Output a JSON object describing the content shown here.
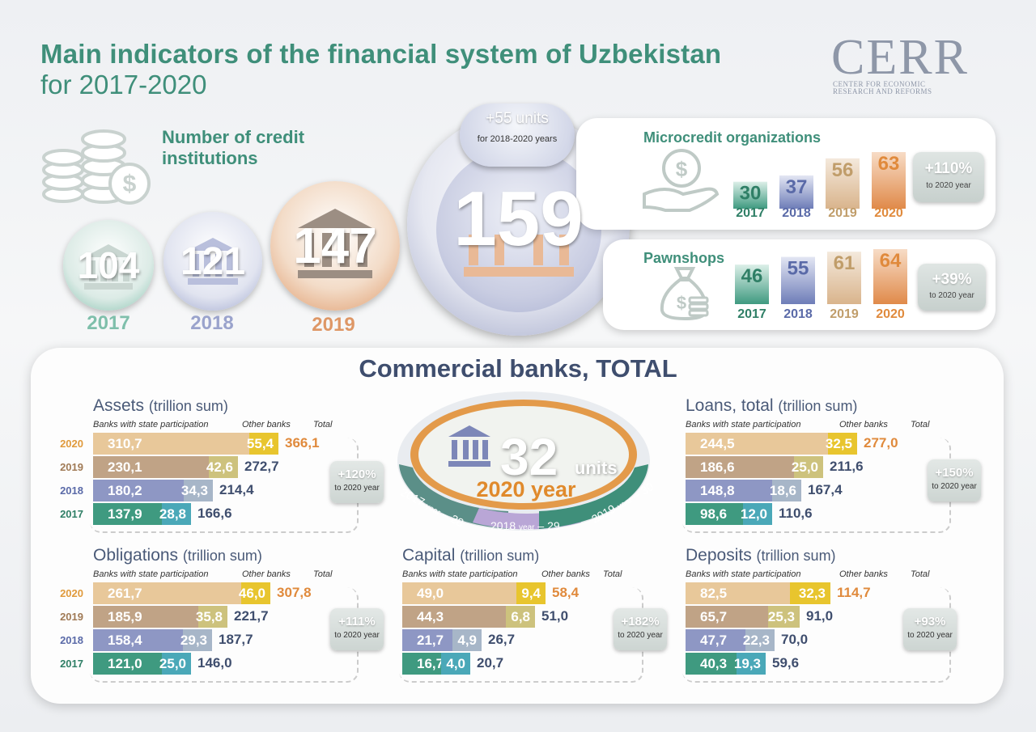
{
  "header": {
    "title": "Main indicators of the financial system of Uzbekistan",
    "subtitle": "for 2017-2020"
  },
  "logo": {
    "word": "CERR",
    "line1": "CENTER FOR ECONOMIC",
    "line2": "RESEARCH AND REFORMS"
  },
  "credit": {
    "heading": "Number of credit institutions",
    "circles": [
      {
        "value": "104",
        "year": "2017",
        "color": "#4a9f85"
      },
      {
        "value": "121",
        "year": "2018",
        "color": "#7d88b6"
      },
      {
        "value": "147",
        "year": "2019",
        "color": "#d98a57"
      }
    ],
    "total": "159",
    "change": "+55 units",
    "change_note": "for 2018-2020 years"
  },
  "microcredit": {
    "title": "Microcredit organizations",
    "years": [
      "2017",
      "2018",
      "2019",
      "2020"
    ],
    "values": [
      30,
      37,
      56,
      63
    ],
    "badge_big": "+110%",
    "badge_small": "to 2020 year"
  },
  "pawnshops": {
    "title": "Pawnshops",
    "years": [
      "2017",
      "2018",
      "2019",
      "2020"
    ],
    "values": [
      46,
      55,
      61,
      64
    ],
    "badge_big": "+39%",
    "badge_small": "to 2020 year"
  },
  "banks": {
    "title": "Commercial banks, TOTAL",
    "count": "32",
    "units": "units",
    "count_year": "2020 year",
    "prev": [
      {
        "label": "2017",
        "word": "year",
        "value": "28"
      },
      {
        "label": "2018",
        "word": "year",
        "value": "29"
      },
      {
        "label": "2019",
        "word": "year",
        "value": "30"
      }
    ]
  },
  "col_heads": {
    "state": "Banks with state participation",
    "other": "Other banks",
    "total": "Total"
  },
  "year_colors": {
    "2020": "#e09a3c",
    "2019": "#a07a55",
    "2018": "#5a6aa8",
    "2017": "#2f7f66"
  },
  "state_colors": {
    "2020": "#e8c89a",
    "2019": "#c0a386",
    "2018": "#8e97c4",
    "2017": "#3f9a80"
  },
  "other_colors": {
    "2020": "#e8c52e",
    "2019": "#cdc27d",
    "2018": "#a7b6c8",
    "2017": "#4aa8b8"
  },
  "chart_data": [
    {
      "type": "bar",
      "title": "Assets",
      "unit": "(trillion sum)",
      "categories": [
        "2020",
        "2019",
        "2018",
        "2017"
      ],
      "series": [
        {
          "name": "Banks with state participation",
          "values": [
            310.7,
            230.1,
            180.2,
            137.9
          ]
        },
        {
          "name": "Other banks",
          "values": [
            55.4,
            42.6,
            34.3,
            28.8
          ]
        }
      ],
      "labels_state": [
        "310,7",
        "230,1",
        "180,2",
        "137,9"
      ],
      "labels_other": [
        "55,4",
        "42,6",
        "34,3",
        "28,8"
      ],
      "totals": [
        "366,1",
        "272,7",
        "214,4",
        "166,6"
      ],
      "badge_big": "+120%",
      "badge_small": "to 2020 year"
    },
    {
      "type": "bar",
      "title": "Loans, total",
      "unit": "(trillion sum)",
      "categories": [
        "2020",
        "2019",
        "2018",
        "2017"
      ],
      "series": [
        {
          "name": "Banks with state participation",
          "values": [
            244.5,
            186.6,
            148.8,
            98.6
          ]
        },
        {
          "name": "Other banks",
          "values": [
            32.5,
            25.0,
            18.6,
            12.0
          ]
        }
      ],
      "labels_state": [
        "244,5",
        "186,6",
        "148,8",
        "98,6"
      ],
      "labels_other": [
        "32,5",
        "25,0",
        "18,6",
        "12,0"
      ],
      "totals": [
        "277,0",
        "211,6",
        "167,4",
        "110,6"
      ],
      "badge_big": "+150%",
      "badge_small": "to 2020 year"
    },
    {
      "type": "bar",
      "title": "Obligations",
      "unit": "(trillion sum)",
      "categories": [
        "2020",
        "2019",
        "2018",
        "2017"
      ],
      "series": [
        {
          "name": "Banks with state participation",
          "values": [
            261.7,
            185.9,
            158.4,
            121.0
          ]
        },
        {
          "name": "Other banks",
          "values": [
            46.0,
            35.8,
            29.3,
            25.0
          ]
        }
      ],
      "labels_state": [
        "261,7",
        "185,9",
        "158,4",
        "121,0"
      ],
      "labels_other": [
        "46,0",
        "35,8",
        "29,3",
        "25,0"
      ],
      "totals": [
        "307,8",
        "221,7",
        "187,7",
        "146,0"
      ],
      "badge_big": "+111%",
      "badge_small": "to 2020 year"
    },
    {
      "type": "bar",
      "title": "Capital",
      "unit": "(trillion sum)",
      "categories": [
        "2020",
        "2019",
        "2018",
        "2017"
      ],
      "series": [
        {
          "name": "Banks with state participation",
          "values": [
            49.0,
            44.3,
            21.7,
            16.7
          ]
        },
        {
          "name": "Other banks",
          "values": [
            9.4,
            6.8,
            4.9,
            4.0
          ]
        }
      ],
      "labels_state": [
        "49,0",
        "44,3",
        "21,7",
        "16,7"
      ],
      "labels_other": [
        "9,4",
        "6,8",
        "4,9",
        "4,0"
      ],
      "totals": [
        "58,4",
        "51,0",
        "26,7",
        "20,7"
      ],
      "badge_big": "+182%",
      "badge_small": "to 2020 year"
    },
    {
      "type": "bar",
      "title": "Deposits",
      "unit": "(trillion sum)",
      "categories": [
        "2020",
        "2019",
        "2018",
        "2017"
      ],
      "series": [
        {
          "name": "Banks with state participation",
          "values": [
            82.5,
            65.7,
            47.7,
            40.3
          ]
        },
        {
          "name": "Other banks",
          "values": [
            32.3,
            25.3,
            22.3,
            19.3
          ]
        }
      ],
      "labels_state": [
        "82,5",
        "65,7",
        "47,7",
        "40,3"
      ],
      "labels_other": [
        "32,3",
        "25,3",
        "22,3",
        "19,3"
      ],
      "totals": [
        "114,7",
        "91,0",
        "70,0",
        "59,6"
      ],
      "badge_big": "+93%",
      "badge_small": "to 2020 year"
    },
    {
      "type": "bar",
      "title": "Microcredit organizations",
      "categories": [
        "2017",
        "2018",
        "2019",
        "2020"
      ],
      "values": [
        30,
        37,
        56,
        63
      ]
    },
    {
      "type": "bar",
      "title": "Pawnshops",
      "categories": [
        "2017",
        "2018",
        "2019",
        "2020"
      ],
      "values": [
        46,
        55,
        61,
        64
      ]
    }
  ]
}
